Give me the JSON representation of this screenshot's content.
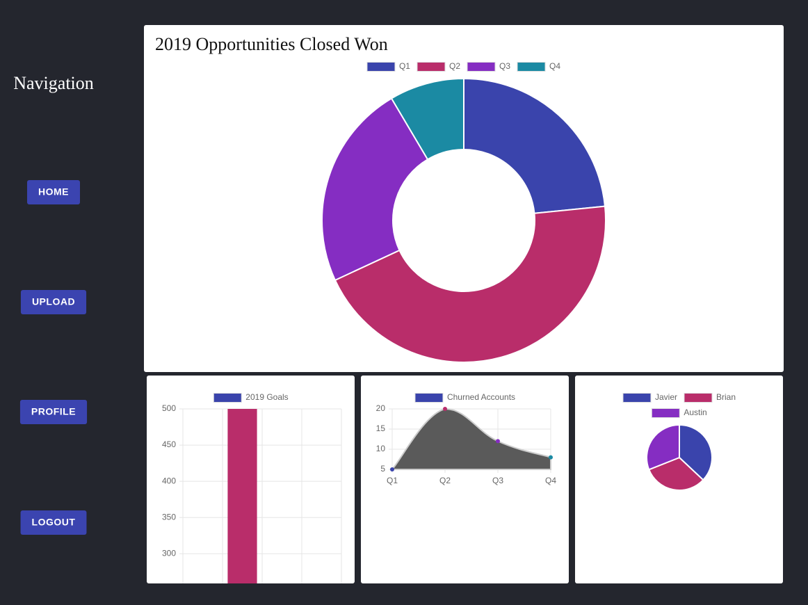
{
  "navigation": {
    "title": "Navigation",
    "buttons": [
      "HOME",
      "UPLOAD",
      "PROFILE",
      "LOGOUT"
    ]
  },
  "chart_data": [
    {
      "type": "doughnut",
      "title": "2019 Opportunities Closed Won",
      "categories": [
        "Q1",
        "Q2",
        "Q3",
        "Q4"
      ],
      "values": [
        11,
        21,
        11,
        4
      ],
      "colors": [
        "#3a44ac",
        "#b92d6a",
        "#852dc2",
        "#1b8aa3"
      ]
    },
    {
      "type": "bar",
      "categories": [
        null,
        null,
        null,
        null
      ],
      "series": [
        {
          "name": "2019 Goals",
          "color": "#3a44ac",
          "values": [
            null,
            500,
            null,
            null
          ],
          "bar_colors": [
            "#3a44ac",
            "#b92d6a",
            "#852dc2",
            "#1b8aa3"
          ]
        }
      ],
      "ylim": [
        258,
        500
      ],
      "yticks": [
        300,
        350,
        400,
        450,
        500
      ],
      "grid": true
    },
    {
      "type": "line",
      "categories": [
        "Q1",
        "Q2",
        "Q3",
        "Q4"
      ],
      "series": [
        {
          "name": "Churned Accounts",
          "color": "#3a44ac",
          "fill": "#5a5a5a",
          "point_colors": [
            "#3a44ac",
            "#b92d6a",
            "#852dc2",
            "#1b8aa3"
          ],
          "values": [
            5,
            20,
            12,
            8
          ]
        }
      ],
      "ylim": [
        5,
        20
      ],
      "yticks": [
        5,
        10,
        15,
        20
      ],
      "grid": true
    },
    {
      "type": "pie",
      "categories": [
        "Javier",
        "Brian",
        "Austin"
      ],
      "values": [
        37,
        32,
        31
      ],
      "colors": [
        "#3a44ac",
        "#b92d6a",
        "#852dc2"
      ]
    }
  ]
}
